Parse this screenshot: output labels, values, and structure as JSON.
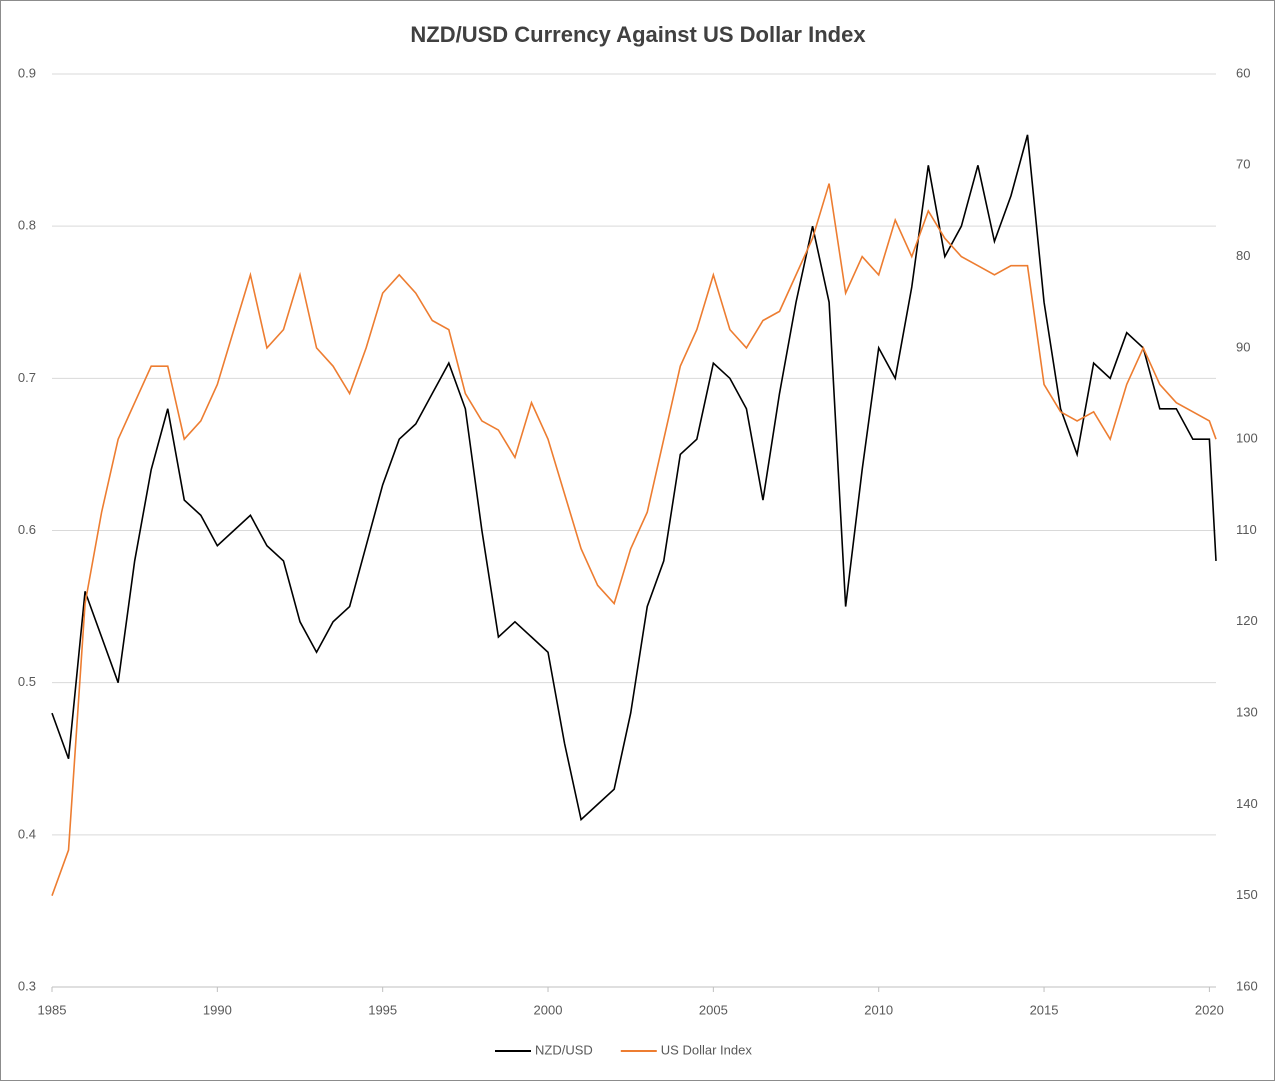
{
  "chart_data": {
    "type": "line",
    "title": "NZD/USD Currency Against US Dollar Index",
    "x": [
      1985,
      1985.5,
      1986,
      1986.5,
      1987,
      1987.5,
      1988,
      1988.5,
      1989,
      1989.5,
      1990,
      1990.5,
      1991,
      1991.5,
      1992,
      1992.5,
      1993,
      1993.5,
      1994,
      1994.5,
      1995,
      1995.5,
      1996,
      1996.5,
      1997,
      1997.5,
      1998,
      1998.5,
      1999,
      1999.5,
      2000,
      2000.5,
      2001,
      2001.5,
      2002,
      2002.5,
      2003,
      2003.5,
      2004,
      2004.5,
      2005,
      2005.5,
      2006,
      2006.5,
      2007,
      2007.5,
      2008,
      2008.5,
      2009,
      2009.5,
      2010,
      2010.5,
      2011,
      2011.5,
      2012,
      2012.5,
      2013,
      2013.5,
      2014,
      2014.5,
      2015,
      2015.5,
      2016,
      2016.5,
      2017,
      2017.5,
      2018,
      2018.5,
      2019,
      2019.5,
      2020,
      2020.2
    ],
    "series": [
      {
        "name": "NZD/USD",
        "color": "#000000",
        "axis": "y",
        "values": [
          0.48,
          0.45,
          0.56,
          0.53,
          0.5,
          0.58,
          0.64,
          0.68,
          0.62,
          0.61,
          0.59,
          0.6,
          0.61,
          0.59,
          0.58,
          0.54,
          0.52,
          0.54,
          0.55,
          0.59,
          0.63,
          0.66,
          0.67,
          0.69,
          0.71,
          0.68,
          0.6,
          0.53,
          0.54,
          0.53,
          0.52,
          0.46,
          0.41,
          0.42,
          0.43,
          0.48,
          0.55,
          0.58,
          0.65,
          0.66,
          0.71,
          0.7,
          0.68,
          0.62,
          0.69,
          0.75,
          0.8,
          0.75,
          0.55,
          0.64,
          0.72,
          0.7,
          0.76,
          0.84,
          0.78,
          0.8,
          0.84,
          0.79,
          0.82,
          0.86,
          0.75,
          0.68,
          0.65,
          0.71,
          0.7,
          0.73,
          0.72,
          0.68,
          0.68,
          0.66,
          0.66,
          0.58
        ]
      },
      {
        "name": "US Dollar Index",
        "color": "#ed7d31",
        "axis": "y2",
        "values": [
          150,
          145,
          118,
          108,
          100,
          96,
          92,
          92,
          100,
          98,
          94,
          88,
          82,
          90,
          88,
          82,
          90,
          92,
          95,
          90,
          84,
          82,
          84,
          87,
          88,
          95,
          98,
          99,
          102,
          96,
          100,
          106,
          112,
          116,
          118,
          112,
          108,
          100,
          92,
          88,
          82,
          88,
          90,
          87,
          86,
          82,
          78,
          72,
          84,
          80,
          82,
          76,
          80,
          75,
          78,
          80,
          81,
          82,
          81,
          81,
          94,
          97,
          98,
          97,
          100,
          94,
          90,
          94,
          96,
          97,
          98,
          100
        ]
      }
    ],
    "xlim": [
      1985,
      2020.2
    ],
    "xticks": [
      1985,
      1990,
      1995,
      2000,
      2005,
      2010,
      2015,
      2020
    ],
    "ylim": [
      0.3,
      0.9
    ],
    "yticks": [
      0.3,
      0.4,
      0.5,
      0.6,
      0.7,
      0.8,
      0.9
    ],
    "y2lim": [
      160,
      60
    ],
    "y2ticks": [
      160,
      150,
      140,
      130,
      120,
      110,
      100,
      90,
      80,
      70,
      60
    ],
    "grid": true,
    "legend": "bottom"
  }
}
